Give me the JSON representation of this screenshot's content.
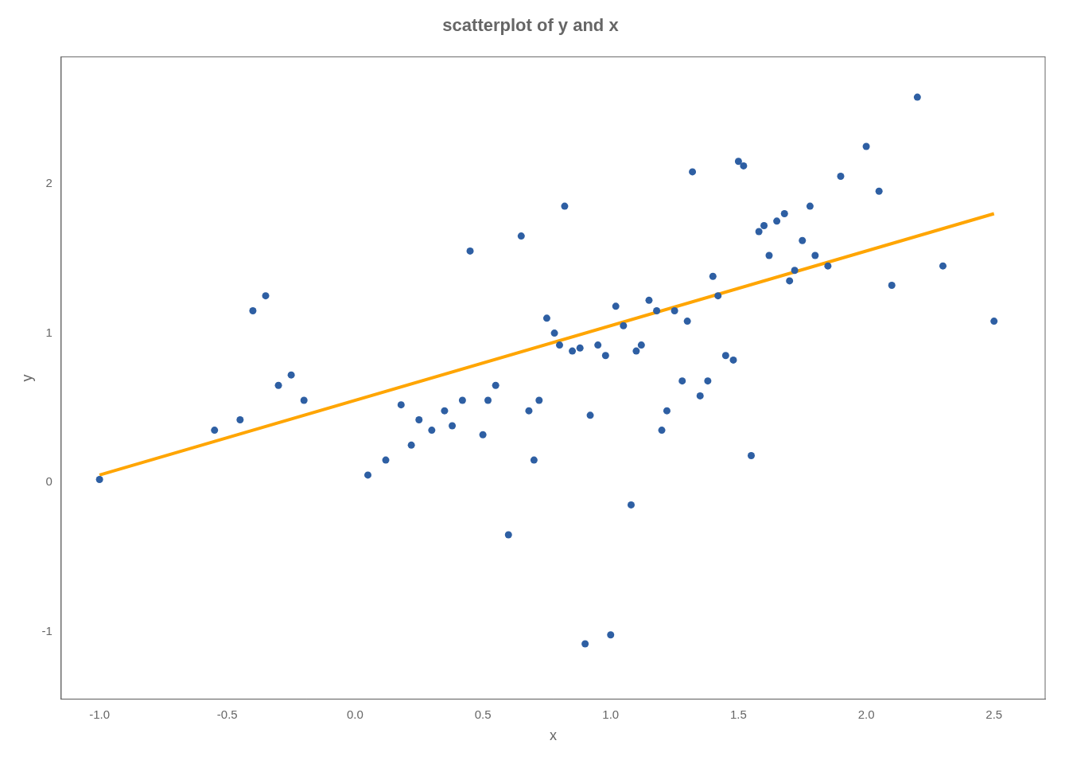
{
  "chart_data": {
    "type": "scatter",
    "title": "scatterplot of y and x",
    "xlabel": "x",
    "ylabel": "y",
    "xlim": [
      -1.15,
      2.7
    ],
    "ylim": [
      -1.45,
      2.85
    ],
    "xticks": [
      {
        "value": -1.0,
        "label": "-1.0"
      },
      {
        "value": -0.5,
        "label": "-0.5"
      },
      {
        "value": 0.0,
        "label": "0.0"
      },
      0.5,
      {
        "value": 1.0,
        "label": "1.0"
      },
      1.5,
      {
        "value": 2.0,
        "label": "2.0"
      },
      2.5
    ],
    "yticks": [
      -1,
      0,
      1,
      2
    ],
    "grid": false,
    "series": [
      {
        "type": "scatter",
        "color": "#2E5FA3",
        "x": [
          -1.0,
          -0.55,
          -0.45,
          -0.4,
          -0.35,
          -0.3,
          -0.25,
          -0.2,
          0.05,
          0.12,
          0.18,
          0.22,
          0.25,
          0.3,
          0.35,
          0.38,
          0.42,
          0.45,
          0.5,
          0.52,
          0.55,
          0.6,
          0.65,
          0.68,
          0.7,
          0.72,
          0.75,
          0.78,
          0.8,
          0.82,
          0.85,
          0.88,
          0.9,
          0.92,
          0.95,
          0.98,
          1.0,
          1.02,
          1.05,
          1.08,
          1.1,
          1.12,
          1.15,
          1.18,
          1.2,
          1.22,
          1.25,
          1.28,
          1.3,
          1.32,
          1.35,
          1.38,
          1.4,
          1.42,
          1.45,
          1.48,
          1.5,
          1.52,
          1.55,
          1.58,
          1.6,
          1.62,
          1.65,
          1.68,
          1.7,
          1.72,
          1.75,
          1.78,
          1.8,
          1.85,
          1.9,
          2.0,
          2.05,
          2.1,
          2.2,
          2.3,
          2.5
        ],
        "values": [
          0.02,
          0.35,
          0.42,
          1.15,
          1.25,
          0.65,
          0.72,
          0.55,
          0.05,
          0.15,
          0.52,
          0.25,
          0.42,
          0.35,
          0.48,
          0.38,
          0.55,
          1.55,
          0.32,
          0.55,
          0.65,
          -0.35,
          1.65,
          0.48,
          0.15,
          0.55,
          1.1,
          1.0,
          0.92,
          1.85,
          0.88,
          0.9,
          -1.08,
          0.45,
          0.92,
          0.85,
          -1.02,
          1.18,
          1.05,
          -0.15,
          0.88,
          0.92,
          1.22,
          1.15,
          0.35,
          0.48,
          1.15,
          0.68,
          1.08,
          2.08,
          0.58,
          0.68,
          1.38,
          1.25,
          0.85,
          0.82,
          2.15,
          2.12,
          0.18,
          1.68,
          1.72,
          1.52,
          1.75,
          1.8,
          1.35,
          1.42,
          1.62,
          1.85,
          1.52,
          1.45,
          2.05,
          2.25,
          1.95,
          1.32,
          2.58,
          1.45,
          1.08
        ]
      },
      {
        "type": "line",
        "color": "#FFA500",
        "x": [
          -1.0,
          2.5
        ],
        "values": [
          0.05,
          1.8
        ]
      }
    ]
  }
}
